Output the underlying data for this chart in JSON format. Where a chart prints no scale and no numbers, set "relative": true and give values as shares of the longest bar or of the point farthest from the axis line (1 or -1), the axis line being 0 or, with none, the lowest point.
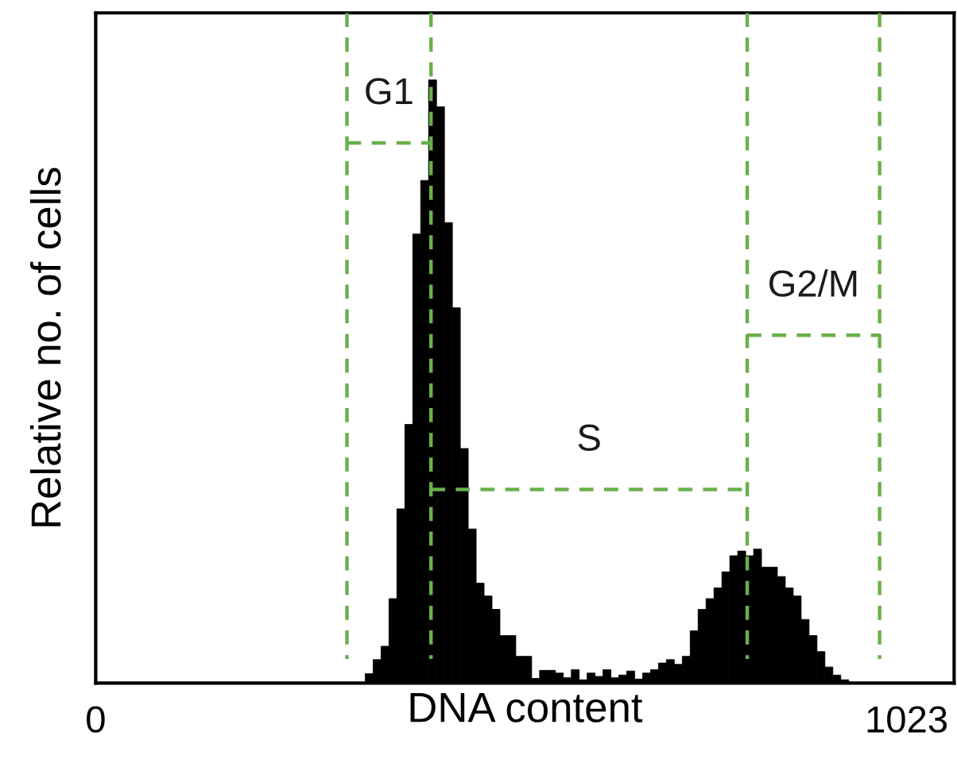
{
  "chart_data": {
    "type": "histogram",
    "relative": true,
    "xlabel": "DNA content",
    "ylabel": "Relative no. of cells",
    "xlim": [
      0,
      1083
    ],
    "xticks": [
      0,
      1023
    ],
    "grid": false,
    "bins": [
      340,
      350,
      360,
      370,
      380,
      390,
      400,
      410,
      420,
      430,
      440,
      450,
      460,
      470,
      480,
      490,
      500,
      510,
      520,
      530,
      540,
      550,
      560,
      570,
      580,
      590,
      600,
      610,
      620,
      630,
      640,
      650,
      660,
      670,
      680,
      690,
      700,
      710,
      720,
      730,
      740,
      750,
      760,
      770,
      780,
      790,
      800,
      810,
      820,
      830,
      840,
      850,
      860,
      870,
      880,
      890,
      900,
      910,
      920,
      930,
      940,
      950
    ],
    "values": [
      0.014,
      0.035,
      0.055,
      0.126,
      0.26,
      0.386,
      0.67,
      0.75,
      0.9,
      0.86,
      0.687,
      0.56,
      0.35,
      0.23,
      0.149,
      0.13,
      0.11,
      0.071,
      0.071,
      0.04,
      0.04,
      0.007,
      0.019,
      0.019,
      0.015,
      0.008,
      0.02,
      0.005,
      0.015,
      0.01,
      0.02,
      0.008,
      0.012,
      0.018,
      0.006,
      0.015,
      0.02,
      0.03,
      0.035,
      0.028,
      0.04,
      0.078,
      0.11,
      0.126,
      0.142,
      0.166,
      0.19,
      0.197,
      0.19,
      0.2,
      0.173,
      0.173,
      0.159,
      0.142,
      0.13,
      0.095,
      0.071,
      0.047,
      0.024,
      0.012,
      0.005
    ],
    "color": "#000000",
    "series": [
      {
        "type": "line",
        "color": "#6ab04c",
        "line_style": "dashed",
        "marker": "none",
        "x": [
          317,
          317
        ],
        "values": [
          1,
          0.036
        ]
      },
      {
        "type": "line",
        "color": "#6ab04c",
        "line_style": "dashed",
        "marker": "none",
        "x": [
          317,
          423
        ],
        "values": [
          0.806,
          0.806
        ]
      },
      {
        "type": "line",
        "color": "#6ab04c",
        "line_style": "dashed",
        "marker": "none",
        "x": [
          423,
          423
        ],
        "values": [
          1,
          0.036
        ]
      },
      {
        "type": "line",
        "color": "#6ab04c",
        "line_style": "dashed",
        "marker": "none",
        "x": [
          423,
          822
        ],
        "values": [
          0.289,
          0.289
        ]
      },
      {
        "type": "line",
        "color": "#6ab04c",
        "line_style": "dashed",
        "marker": "none",
        "x": [
          822,
          822
        ],
        "values": [
          1,
          0.036
        ]
      },
      {
        "type": "line",
        "color": "#6ab04c",
        "line_style": "dashed",
        "marker": "none",
        "x": [
          822,
          989
        ],
        "values": [
          0.519,
          0.519
        ]
      },
      {
        "type": "line",
        "color": "#6ab04c",
        "line_style": "dashed",
        "marker": "none",
        "x": [
          989,
          989
        ],
        "values": [
          1,
          0.036
        ]
      }
    ],
    "annotations": [
      "G1",
      "S",
      "G2/M"
    ]
  }
}
